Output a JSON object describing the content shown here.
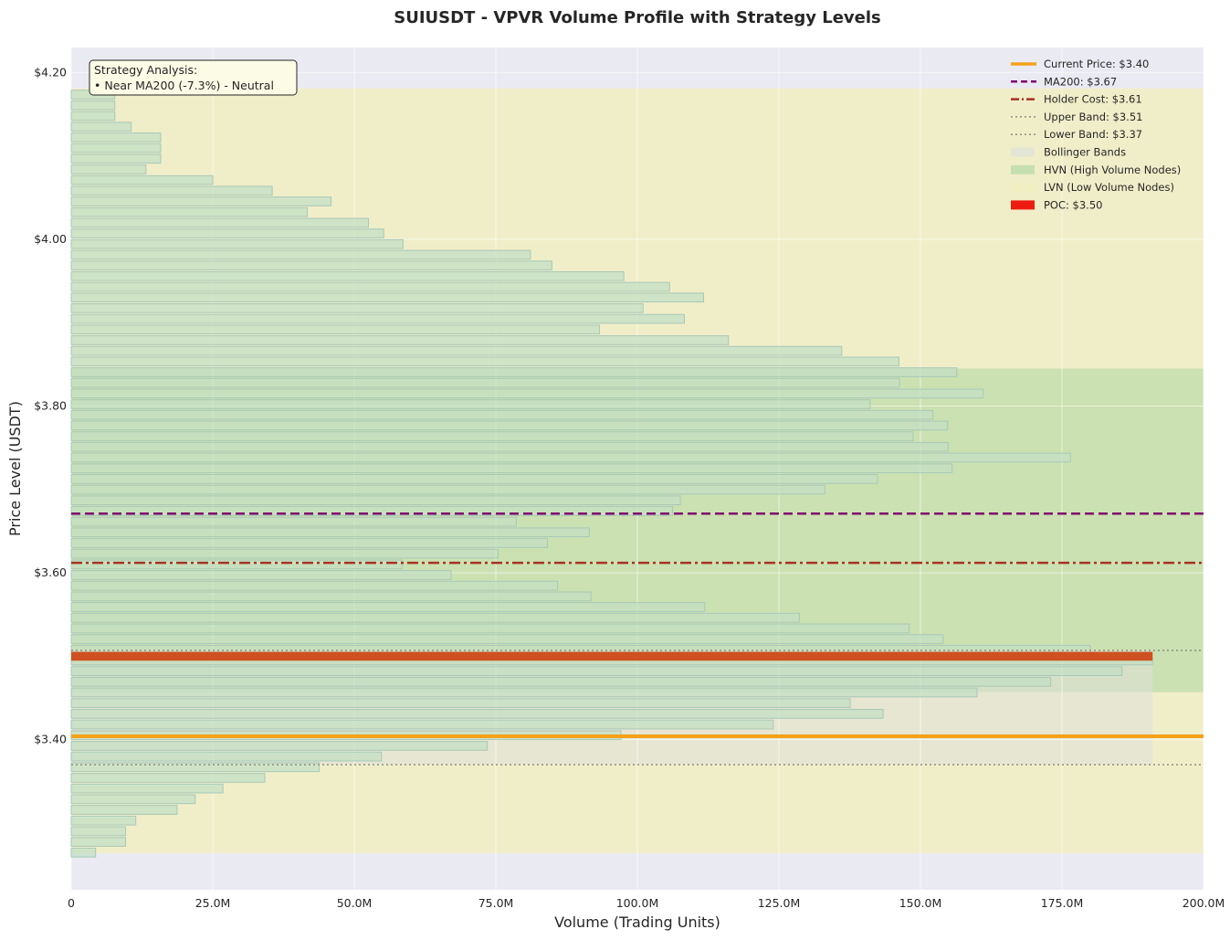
{
  "chart_data": {
    "type": "bar",
    "orientation": "horizontal",
    "title": "SUIUSDT - VPVR Volume Profile with Strategy Levels",
    "xlabel": "Volume (Trading Units)",
    "ylabel": "Price Level (USDT)",
    "xlim": [
      0,
      200
    ],
    "ylim": [
      3.22,
      4.23
    ],
    "x_ticks": [
      {
        "value": 0,
        "label": "0"
      },
      {
        "value": 25,
        "label": "25.0M"
      },
      {
        "value": 50,
        "label": "50.0M"
      },
      {
        "value": 75,
        "label": "75.0M"
      },
      {
        "value": 100,
        "label": "100.0M"
      },
      {
        "value": 125,
        "label": "125.0M"
      },
      {
        "value": 150,
        "label": "150.0M"
      },
      {
        "value": 175,
        "label": "175.0M"
      },
      {
        "value": 200,
        "label": "200.0M"
      }
    ],
    "y_ticks": [
      {
        "value": 3.4,
        "label": "$3.40"
      },
      {
        "value": 3.6,
        "label": "$3.60"
      },
      {
        "value": 3.8,
        "label": "$3.80"
      },
      {
        "value": 4.0,
        "label": "$4.00"
      },
      {
        "value": 4.2,
        "label": "$4.20"
      }
    ],
    "grid": true,
    "bin_height": 0.0128,
    "prices": [
      3.2646,
      3.2774,
      3.2902,
      3.303,
      3.3158,
      3.3286,
      3.3414,
      3.3542,
      3.367,
      3.3798,
      3.3926,
      3.4054,
      3.4182,
      3.431,
      3.4438,
      3.4566,
      3.4694,
      3.4822,
      3.495,
      3.5078,
      3.5206,
      3.5334,
      3.5462,
      3.559,
      3.5718,
      3.5846,
      3.5974,
      3.6102,
      3.623,
      3.6358,
      3.6486,
      3.6614,
      3.6742,
      3.687,
      3.6998,
      3.7126,
      3.7254,
      3.7382,
      3.751,
      3.7638,
      3.7766,
      3.7894,
      3.8022,
      3.815,
      3.8278,
      3.8406,
      3.8534,
      3.8662,
      3.879,
      3.8918,
      3.9046,
      3.9174,
      3.9302,
      3.943,
      3.9558,
      3.9686,
      3.9814,
      3.9942,
      4.007,
      4.0198,
      4.0326,
      4.0454,
      4.0582,
      4.071,
      4.0838,
      4.0966,
      4.1094,
      4.1222,
      4.135,
      4.1478,
      4.1606,
      4.1734
    ],
    "volumes": [
      4.3,
      9.6,
      9.6,
      11.4,
      18.7,
      21.9,
      26.8,
      34.2,
      43.8,
      54.8,
      73.5,
      97.1,
      124.0,
      143.4,
      137.6,
      160.0,
      173.0,
      185.6,
      191.0,
      180.0,
      154.0,
      148.0,
      128.6,
      111.9,
      91.8,
      85.9,
      67.1,
      58.4,
      75.4,
      84.1,
      91.5,
      78.6,
      106.2,
      107.6,
      133.1,
      142.4,
      155.6,
      176.5,
      154.9,
      148.7,
      154.8,
      152.2,
      141.1,
      161.1,
      146.3,
      156.4,
      146.2,
      136.1,
      116.1,
      93.3,
      108.3,
      101.0,
      111.7,
      105.7,
      97.6,
      84.9,
      81.1,
      58.6,
      55.2,
      52.5,
      41.7,
      45.9,
      35.5,
      25.0,
      13.2,
      15.8,
      15.8,
      15.8,
      10.6,
      7.7,
      7.7,
      7.7
    ],
    "poc": {
      "price": 3.5,
      "volume": 191.0,
      "label": "POC: $3.50",
      "color": "#cf5020"
    },
    "bollinger_bands": {
      "upper": 3.507,
      "lower": 3.37
    },
    "lvn_zone": [
      3.264,
      4.181
    ],
    "hvn_zone": [
      3.457,
      3.845
    ],
    "levels": [
      {
        "name": "Current Price",
        "price": 3.404,
        "label": "Current Price: $3.40",
        "color": "#f5a11a",
        "style": "solid"
      },
      {
        "name": "MA200",
        "price": 3.671,
        "label": "MA200: $3.67",
        "color": "#800a6e",
        "style": "dashed"
      },
      {
        "name": "Holder Cost",
        "price": 3.612,
        "label": "Holder Cost: $3.61",
        "color": "#a83225",
        "style": "dashdot"
      },
      {
        "name": "Upper Band",
        "price": 3.507,
        "label": "Upper Band: $3.51",
        "color": "#8c9080",
        "style": "dotted"
      },
      {
        "name": "Lower Band",
        "price": 3.37,
        "label": "Lower Band: $3.37",
        "color": "#8c9080",
        "style": "dotted"
      }
    ],
    "legend": {
      "placement": "top-right",
      "entries": [
        {
          "label": "Current Price: $3.40",
          "kind": "line",
          "color": "#f5a11a",
          "style": "solid"
        },
        {
          "label": "MA200: $3.67",
          "kind": "line",
          "color": "#800a6e",
          "style": "dashed"
        },
        {
          "label": "Holder Cost: $3.61",
          "kind": "line",
          "color": "#a83225",
          "style": "dashdot"
        },
        {
          "label": "Upper Band: $3.51",
          "kind": "line",
          "color": "#8c9080",
          "style": "dotted"
        },
        {
          "label": "Lower Band: $3.37",
          "kind": "line",
          "color": "#8c9080",
          "style": "dotted"
        },
        {
          "label": "Bollinger Bands",
          "kind": "patch",
          "color": "#e3e6d5"
        },
        {
          "label": "HVN (High Volume Nodes)",
          "kind": "patch",
          "color": "#c6dfae"
        },
        {
          "label": "LVN (Low Volume Nodes)",
          "kind": "patch",
          "color": "#f1efc2"
        },
        {
          "label": "POC: $3.50",
          "kind": "patch",
          "color": "#ee1c10"
        }
      ]
    },
    "annotation": {
      "lines": [
        "Strategy Analysis:",
        "• Near MA200 (-7.3%) - Neutral"
      ],
      "placement": "top-left"
    },
    "colors": {
      "plot_bg": "#eaeaf2",
      "bar_fill": "#c4dfc4",
      "bar_stroke": "#a8c8b8",
      "lvn_fill": "#f1efc2",
      "hvn_fill": "#c6dfae",
      "bb_fill": "#dfe0d8",
      "annotation_bg": "#fbfbe6"
    }
  }
}
